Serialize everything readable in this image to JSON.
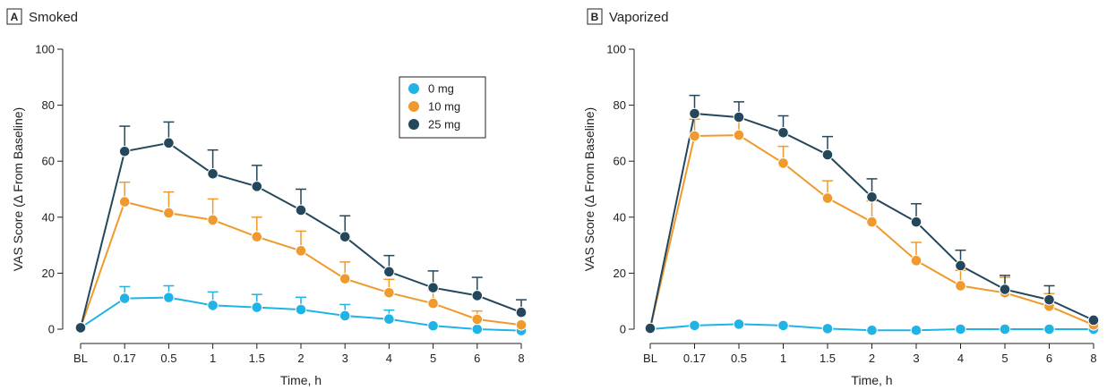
{
  "chart_data": [
    {
      "type": "line",
      "panel_letter": "A",
      "title": "Smoked",
      "xlabel": "Time, h",
      "ylabel": "VAS Score (Δ From Baseline)",
      "ylim": [
        0,
        100
      ],
      "yticks": [
        "0",
        "20",
        "40",
        "60",
        "80",
        "100"
      ],
      "categories": [
        "BL",
        "0.17",
        "0.5",
        "1",
        "1.5",
        "2",
        "3",
        "4",
        "5",
        "6",
        "8"
      ],
      "legend": {
        "placement": "top-right"
      },
      "series": [
        {
          "name": "0 mg",
          "color": "#1fb3e6",
          "values": [
            0.5,
            11,
            11.3,
            8.5,
            7.8,
            7,
            4.8,
            3.6,
            1.2,
            0,
            -0.5
          ],
          "errors": [
            0,
            4.2,
            4.2,
            4.8,
            4.6,
            4.4,
            4.0,
            3.2,
            0,
            0,
            0
          ]
        },
        {
          "name": "10 mg",
          "color": "#f0992c",
          "values": [
            0.5,
            45.5,
            41.5,
            39,
            33,
            28,
            18,
            13,
            9.2,
            3.5,
            1.5
          ],
          "errors": [
            0,
            7.0,
            7.5,
            7.5,
            7.0,
            7.0,
            6.0,
            4.8,
            4.6,
            3.0,
            0
          ]
        },
        {
          "name": "25 mg",
          "color": "#24475b",
          "values": [
            0.5,
            63.5,
            66.5,
            55.5,
            51,
            42.5,
            33,
            20.5,
            14.8,
            12,
            6
          ],
          "errors": [
            0,
            9.0,
            7.5,
            8.5,
            7.5,
            7.5,
            7.5,
            5.8,
            6.0,
            6.5,
            4.5
          ]
        }
      ]
    },
    {
      "type": "line",
      "panel_letter": "B",
      "title": "Vaporized",
      "xlabel": "Time, h",
      "ylabel": "VAS Score (Δ From Baseline)",
      "ylim": [
        0,
        100
      ],
      "yticks": [
        "0",
        "20",
        "40",
        "60",
        "80",
        "100"
      ],
      "categories": [
        "BL",
        "0.17",
        "0.5",
        "1",
        "1.5",
        "2",
        "3",
        "4",
        "5",
        "6",
        "8"
      ],
      "series": [
        {
          "name": "0 mg",
          "color": "#1fb3e6",
          "values": [
            0,
            1.3,
            1.8,
            1.3,
            0.2,
            -0.4,
            -0.4,
            0,
            0,
            0,
            0
          ],
          "errors": [
            0,
            0,
            0,
            0,
            0,
            0,
            0,
            0,
            0,
            0,
            0
          ]
        },
        {
          "name": "10 mg",
          "color": "#f0992c",
          "values": [
            0.3,
            69,
            69.3,
            59.3,
            46.8,
            38.3,
            24.5,
            15.5,
            13,
            8.2,
            1.5
          ],
          "errors": [
            0,
            6.0,
            6.5,
            6.0,
            6.2,
            7.5,
            6.5,
            5.5,
            5.5,
            4.5,
            0
          ]
        },
        {
          "name": "25 mg",
          "color": "#24475b",
          "values": [
            0.3,
            77,
            75.7,
            70.2,
            62.3,
            47.2,
            38.3,
            22.7,
            14.2,
            10.5,
            3.2
          ],
          "errors": [
            0,
            6.5,
            5.5,
            6.0,
            6.5,
            6.5,
            6.5,
            5.5,
            5.0,
            5.0,
            0
          ]
        }
      ]
    }
  ]
}
